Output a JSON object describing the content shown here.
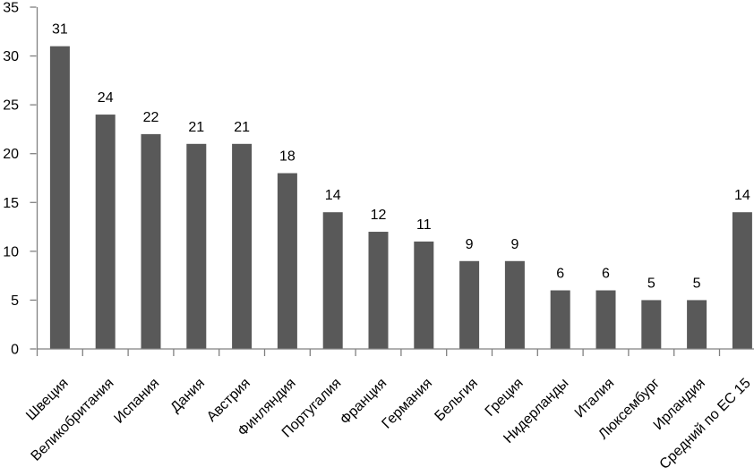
{
  "chart_data": {
    "type": "bar",
    "categories": [
      "Швеция",
      "Великобритания",
      "Испания",
      "Дания",
      "Австрия",
      "Финляндия",
      "Португалия",
      "Франция",
      "Германия",
      "Бельгия",
      "Греция",
      "Нидерланды",
      "Италия",
      "Люксембург",
      "Ирландия",
      "Средний по ЕС 15"
    ],
    "values": [
      31,
      24,
      22,
      21,
      21,
      18,
      14,
      12,
      11,
      9,
      9,
      6,
      6,
      5,
      5,
      14
    ],
    "data_labels": [
      "31",
      "24",
      "22",
      "21",
      "21",
      "18",
      "14",
      "12",
      "11",
      "9",
      "9",
      "6",
      "6",
      "5",
      "5",
      "14"
    ],
    "title": "",
    "xlabel": "",
    "ylabel": "",
    "ylim": [
      0,
      35
    ],
    "ytick_step": 5,
    "ytick_labels": [
      "0",
      "5",
      "10",
      "15",
      "20",
      "25",
      "30",
      "35"
    ],
    "grid": false,
    "legend": false,
    "bar_color": "#595959",
    "axis_color": "#808080",
    "text_color": "#000000",
    "background_color": "#ffffff"
  }
}
